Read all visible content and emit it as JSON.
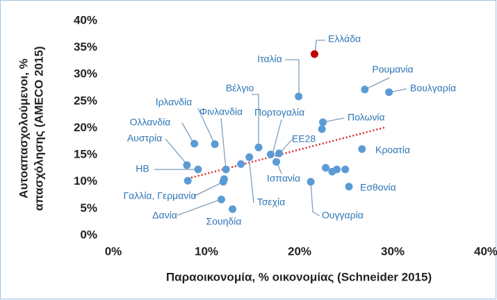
{
  "chart_data": {
    "type": "scatter",
    "xlabel": "Παραοικονομία, % οικονομίας (Schneider 2015)",
    "ylabel": [
      "Αυτοαπασχολούμενοι, %",
      "απασχόλησης (AMECO 2015)"
    ],
    "x": [
      21.6,
      19.9,
      27.0,
      29.6,
      15.6,
      10.9,
      8.7,
      7.9,
      9.1,
      8.0,
      12.1,
      11.9,
      11.8,
      11.6,
      12.8,
      13.7,
      14.6,
      16.9,
      17.8,
      17.5,
      22.5,
      22.4,
      26.7,
      22.8,
      23.5,
      24.0,
      24.9,
      25.3,
      21.2
    ],
    "values": [
      33.8,
      25.9,
      27.2,
      26.7,
      16.4,
      17.0,
      17.1,
      13.1,
      12.3,
      10.2,
      12.3,
      10.5,
      10.0,
      6.7,
      4.9,
      13.3,
      14.6,
      15.1,
      15.3,
      13.7,
      21.1,
      19.8,
      16.1,
      12.6,
      11.9,
      12.3,
      12.3,
      9.1,
      10.0
    ],
    "labels": [
      "Ελλάδα",
      "Ιταλία",
      "Ρουμανία",
      "Βουλγαρία",
      "Βέλγιο",
      "Ιρλανδία",
      "Ολλανδία",
      "Αυστρία",
      "ΗΒ",
      null,
      "Φινλανδία",
      "Γαλλία, Γερμανία",
      null,
      "Δανία",
      "Σουηδία",
      null,
      "Τσεχία",
      "Πορτογαλία",
      "ΕΕ28",
      "Ισπανία",
      "Πολωνία",
      null,
      "Κροατία",
      null,
      null,
      null,
      null,
      "Εσθονία",
      "Ουγγαρία"
    ],
    "colors": [
      "#c00000",
      "#5b9bd5",
      "#5b9bd5",
      "#5b9bd5",
      "#5b9bd5",
      "#5b9bd5",
      "#5b9bd5",
      "#5b9bd5",
      "#5b9bd5",
      "#5b9bd5",
      "#5b9bd5",
      "#5b9bd5",
      "#5b9bd5",
      "#5b9bd5",
      "#5b9bd5",
      "#5b9bd5",
      "#5b9bd5",
      "#5b9bd5",
      "#5b9bd5",
      "#5b9bd5",
      "#5b9bd5",
      "#5b9bd5",
      "#5b9bd5",
      "#5b9bd5",
      "#5b9bd5",
      "#5b9bd5",
      "#5b9bd5",
      "#5b9bd5",
      "#5b9bd5"
    ],
    "trendline": {
      "x": [
        8,
        29.3
      ],
      "y": [
        10.6,
        20.2
      ],
      "color": "#e02020"
    },
    "xlim": [
      0,
      40
    ],
    "xticks": [
      {
        "value": 0,
        "label": "0%"
      },
      {
        "value": 10,
        "label": "10%"
      },
      {
        "value": 20,
        "label": "20%"
      },
      {
        "value": 30,
        "label": "30%"
      },
      {
        "value": 40,
        "label": "40%"
      }
    ],
    "ylim": [
      0,
      40
    ],
    "yticks": [
      {
        "value": 0,
        "label": "0%"
      },
      {
        "value": 5,
        "label": "5%"
      },
      {
        "value": 10,
        "label": "10%"
      },
      {
        "value": 15,
        "label": "15%"
      },
      {
        "value": 20,
        "label": "20%"
      },
      {
        "value": 25,
        "label": "25%"
      },
      {
        "value": 30,
        "label": "30%"
      },
      {
        "value": 35,
        "label": "35%"
      },
      {
        "value": 40,
        "label": "40%"
      }
    ],
    "grid": false
  }
}
